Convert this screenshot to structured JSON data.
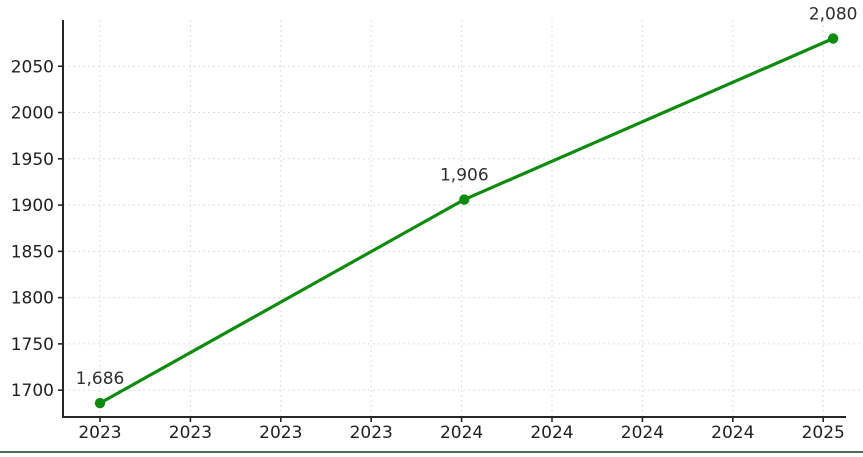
{
  "chart_data": {
    "type": "line",
    "title": "",
    "xlabel": "",
    "ylabel": "",
    "grid": true,
    "grid_style": "dashed",
    "legend": false,
    "x_tick_labels": [
      "2023",
      "2023",
      "2023",
      "2023",
      "2024",
      "2024",
      "2024",
      "2024",
      "2025"
    ],
    "y_ticks": [
      1700,
      1750,
      1800,
      1850,
      1900,
      1950,
      2000,
      2050
    ],
    "y_tick_labels": [
      "1700",
      "1750",
      "1800",
      "1850",
      "1900",
      "1950",
      "2000",
      "2050"
    ],
    "ylim": [
      1671,
      2100
    ],
    "series": [
      {
        "name": "values",
        "color": "#0e8b0e",
        "marker": "circle",
        "points": [
          {
            "x_tick": 0.0,
            "value": 1686,
            "label": "1,686"
          },
          {
            "x_tick": 4.03,
            "value": 1906,
            "label": "1,906"
          },
          {
            "x_tick": 8.11,
            "value": 2080,
            "label": "2,080"
          }
        ]
      }
    ]
  },
  "colors": {
    "line_green": "#0e8b0e",
    "axis": "#262626",
    "tick_label": "#1f1f1f",
    "annotation": "#2e2e2e",
    "gridline": "#dcdcdc",
    "background": "#ffffff",
    "bottom_separator": "#4a6e55"
  }
}
